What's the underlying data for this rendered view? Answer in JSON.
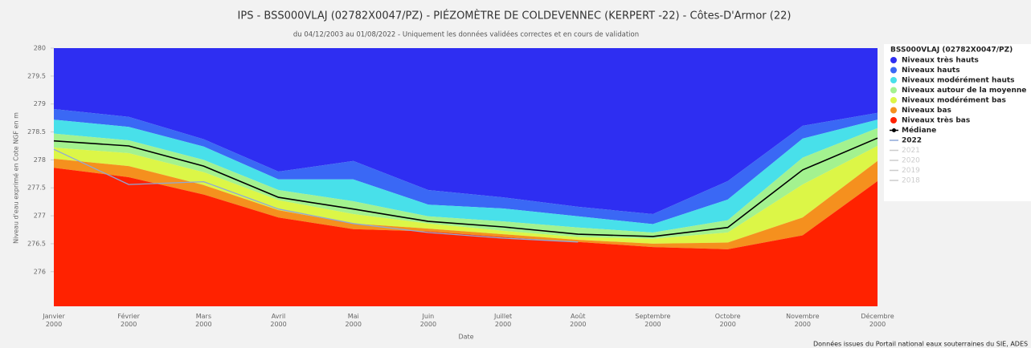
{
  "chart_data": {
    "type": "area",
    "title": "IPS - BSS000VLAJ (02782X0047/PZ) - PIÉZOMÈTRE DE COLDEVENNEC (KERPERT -22) - Côtes-D'Armor (22)",
    "subtitle": "du 04/12/2003 au 01/08/2022 - Uniquement les données validées correctes et en cours de validation",
    "y_label": "Niveau d'eau exprimé en Cote NGF en m",
    "x_label": "Date",
    "credit": "Données issues du Portail national eaux souterraines du SIE, ADES",
    "legend_title": "BSS000VLAJ (02782X0047/PZ)",
    "categories": [
      "Janvier 2000",
      "Février 2000",
      "Mars 2000",
      "Avril 2000",
      "Mai 2000",
      "Juin 2000",
      "Juillet 2000",
      "Août 2000",
      "Septembre 2000",
      "Octobre 2000",
      "Novembre 2000",
      "Décembre 2000"
    ],
    "ylim": [
      275.38,
      280
    ],
    "yticks": [
      276,
      276.5,
      277,
      277.5,
      278,
      278.5,
      279,
      279.5,
      280
    ],
    "bands": [
      {
        "name": "Niveaux très hauts",
        "color": "#2e2ef2",
        "values": [
          278.91,
          278.77,
          278.37,
          277.79,
          277.98,
          277.46,
          277.33,
          277.16,
          277.03,
          277.62,
          278.61,
          278.84
        ]
      },
      {
        "name": "Niveaux hauts",
        "color": "#3a68f5",
        "values": [
          278.72,
          278.59,
          278.24,
          277.65,
          277.65,
          277.2,
          277.13,
          276.99,
          276.85,
          277.29,
          278.38,
          278.72
        ]
      },
      {
        "name": "Niveaux modérément hauts",
        "color": "#48e0ea",
        "values": [
          278.47,
          278.35,
          278.0,
          277.46,
          277.26,
          276.99,
          276.9,
          276.79,
          276.7,
          276.92,
          278.04,
          278.57
        ]
      },
      {
        "name": "Niveaux autour de la moyenne",
        "color": "#a3f28f",
        "values": [
          278.22,
          278.12,
          277.78,
          277.28,
          277.03,
          276.86,
          276.73,
          276.62,
          276.59,
          276.7,
          277.56,
          278.25
        ]
      },
      {
        "name": "Niveaux modérément bas",
        "color": "#dcf647",
        "values": [
          278.02,
          277.89,
          277.55,
          277.1,
          276.86,
          276.77,
          276.67,
          276.57,
          276.5,
          276.52,
          276.97,
          277.98
        ]
      },
      {
        "name": "Niveaux bas",
        "color": "#f5901e",
        "values": [
          277.86,
          277.69,
          277.38,
          276.97,
          276.76,
          276.72,
          276.62,
          276.53,
          276.44,
          276.4,
          276.65,
          277.62
        ]
      },
      {
        "name": "Niveaux très bas",
        "color": "#ff2200"
      }
    ],
    "series": [
      {
        "name": "Médiane",
        "color": "#000000",
        "values": [
          278.34,
          278.25,
          277.89,
          277.33,
          277.12,
          276.9,
          276.8,
          276.67,
          276.63,
          276.79,
          277.82,
          278.39
        ]
      },
      {
        "name": "2022",
        "color": "#8fa8d8",
        "values": [
          278.19,
          277.56,
          277.61,
          277.12,
          276.86,
          276.7,
          276.6,
          276.53,
          null,
          null,
          null,
          null
        ]
      }
    ],
    "hidden_series": [
      "2021",
      "2020",
      "2019",
      "2018"
    ]
  }
}
